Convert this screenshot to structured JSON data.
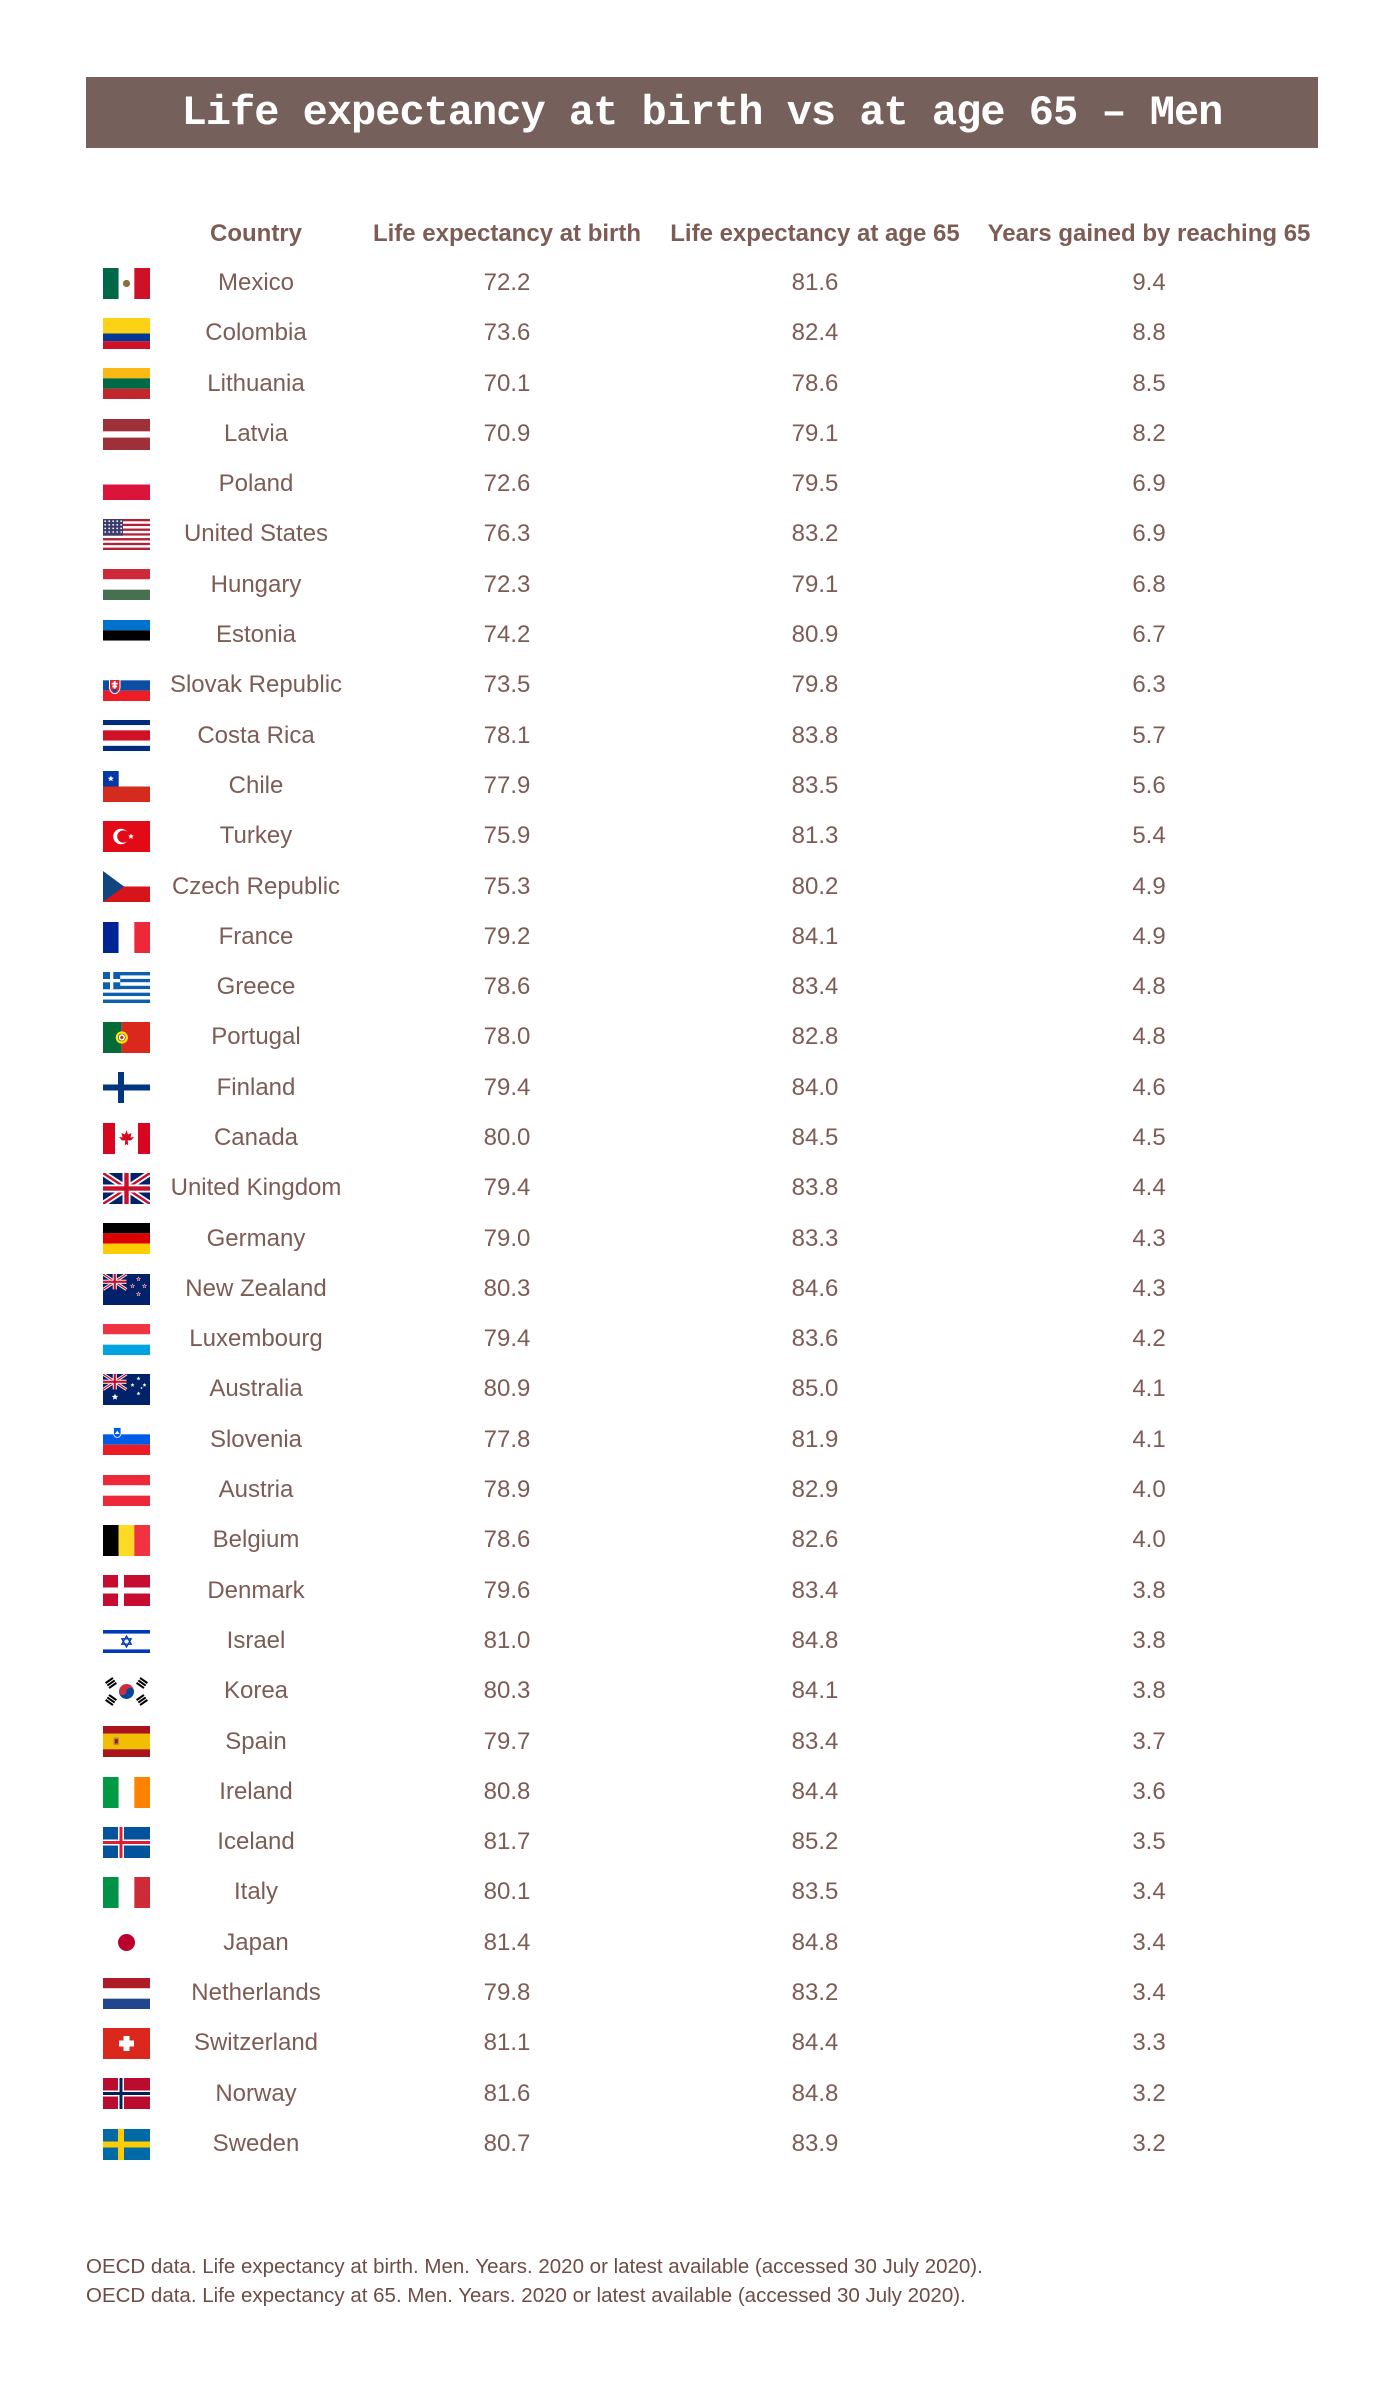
{
  "title": "Life expectancy at birth vs at age 65 – Men",
  "colors": {
    "title_bar_bg": "#75605B",
    "title_text": "#FFFFFF",
    "table_text": "#7D5C55",
    "footer_text": "#6E4C45",
    "page_bg": "#FFFFFF"
  },
  "table": {
    "headers": [
      "Country",
      "Life expectancy at birth",
      "Life expectancy at age 65",
      "Years gained by reaching 65"
    ],
    "rows": [
      {
        "country": "Mexico",
        "birth": "72.2",
        "age65": "81.6",
        "gained": "9.4",
        "flag": {
          "t": "mx"
        }
      },
      {
        "country": "Colombia",
        "birth": "73.6",
        "age65": "82.4",
        "gained": "8.8",
        "flag": {
          "t": "h",
          "c": [
            "#FCD116",
            "#003893",
            "#CE1126"
          ],
          "w": [
            2,
            1,
            1
          ]
        }
      },
      {
        "country": "Lithuania",
        "birth": "70.1",
        "age65": "78.6",
        "gained": "8.5",
        "flag": {
          "t": "h",
          "c": [
            "#FDB913",
            "#006A44",
            "#C1272D"
          ]
        }
      },
      {
        "country": "Latvia",
        "birth": "70.9",
        "age65": "79.1",
        "gained": "8.2",
        "flag": {
          "t": "h",
          "c": [
            "#9E3039",
            "#FFFFFF",
            "#9E3039"
          ],
          "w": [
            2,
            1,
            2
          ]
        }
      },
      {
        "country": "Poland",
        "birth": "72.6",
        "age65": "79.5",
        "gained": "6.9",
        "flag": {
          "t": "h",
          "c": [
            "#FFFFFF",
            "#DC143C"
          ]
        }
      },
      {
        "country": "United States",
        "birth": "76.3",
        "age65": "83.2",
        "gained": "6.9",
        "flag": {
          "t": "us"
        }
      },
      {
        "country": "Hungary",
        "birth": "72.3",
        "age65": "79.1",
        "gained": "6.8",
        "flag": {
          "t": "h",
          "c": [
            "#CE2939",
            "#FFFFFF",
            "#477050"
          ]
        }
      },
      {
        "country": "Estonia",
        "birth": "74.2",
        "age65": "80.9",
        "gained": "6.7",
        "flag": {
          "t": "h",
          "c": [
            "#0072CE",
            "#000000",
            "#FFFFFF"
          ]
        }
      },
      {
        "country": "Slovak Republic",
        "birth": "73.5",
        "age65": "79.8",
        "gained": "6.3",
        "flag": {
          "t": "sk"
        }
      },
      {
        "country": "Costa Rica",
        "birth": "78.1",
        "age65": "83.8",
        "gained": "5.7",
        "flag": {
          "t": "h",
          "c": [
            "#002B7F",
            "#FFFFFF",
            "#CE1126",
            "#FFFFFF",
            "#002B7F"
          ],
          "w": [
            1,
            1,
            2,
            1,
            1
          ]
        }
      },
      {
        "country": "Chile",
        "birth": "77.9",
        "age65": "83.5",
        "gained": "5.6",
        "flag": {
          "t": "cl"
        }
      },
      {
        "country": "Turkey",
        "birth": "75.9",
        "age65": "81.3",
        "gained": "5.4",
        "flag": {
          "t": "tr"
        }
      },
      {
        "country": "Czech Republic",
        "birth": "75.3",
        "age65": "80.2",
        "gained": "4.9",
        "flag": {
          "t": "cz"
        }
      },
      {
        "country": "France",
        "birth": "79.2",
        "age65": "84.1",
        "gained": "4.9",
        "flag": {
          "t": "v",
          "c": [
            "#002395",
            "#FFFFFF",
            "#ED2939"
          ]
        }
      },
      {
        "country": "Greece",
        "birth": "78.6",
        "age65": "83.4",
        "gained": "4.8",
        "flag": {
          "t": "gr"
        }
      },
      {
        "country": "Portugal",
        "birth": "78.0",
        "age65": "82.8",
        "gained": "4.8",
        "flag": {
          "t": "pt"
        }
      },
      {
        "country": "Finland",
        "birth": "79.4",
        "age65": "84.0",
        "gained": "4.6",
        "flag": {
          "t": "nordic",
          "bg": "#FFFFFF",
          "cross": "#003580"
        }
      },
      {
        "country": "Canada",
        "birth": "80.0",
        "age65": "84.5",
        "gained": "4.5",
        "flag": {
          "t": "ca"
        }
      },
      {
        "country": "United Kingdom",
        "birth": "79.4",
        "age65": "83.8",
        "gained": "4.4",
        "flag": {
          "t": "uk"
        }
      },
      {
        "country": "Germany",
        "birth": "79.0",
        "age65": "83.3",
        "gained": "4.3",
        "flag": {
          "t": "h",
          "c": [
            "#000000",
            "#DD0000",
            "#FFCE00"
          ]
        }
      },
      {
        "country": "New Zealand",
        "birth": "80.3",
        "age65": "84.6",
        "gained": "4.3",
        "flag": {
          "t": "aunz",
          "variant": "nz"
        }
      },
      {
        "country": "Luxembourg",
        "birth": "79.4",
        "age65": "83.6",
        "gained": "4.2",
        "flag": {
          "t": "h",
          "c": [
            "#EF3340",
            "#FFFFFF",
            "#00A3E0"
          ]
        }
      },
      {
        "country": "Australia",
        "birth": "80.9",
        "age65": "85.0",
        "gained": "4.1",
        "flag": {
          "t": "aunz",
          "variant": "au"
        }
      },
      {
        "country": "Slovenia",
        "birth": "77.8",
        "age65": "81.9",
        "gained": "4.1",
        "flag": {
          "t": "si"
        }
      },
      {
        "country": "Austria",
        "birth": "78.9",
        "age65": "82.9",
        "gained": "4.0",
        "flag": {
          "t": "h",
          "c": [
            "#ED2939",
            "#FFFFFF",
            "#ED2939"
          ]
        }
      },
      {
        "country": "Belgium",
        "birth": "78.6",
        "age65": "82.6",
        "gained": "4.0",
        "flag": {
          "t": "v",
          "c": [
            "#000000",
            "#FDDA24",
            "#EF3340"
          ]
        }
      },
      {
        "country": "Denmark",
        "birth": "79.6",
        "age65": "83.4",
        "gained": "3.8",
        "flag": {
          "t": "nordic",
          "bg": "#C60C30",
          "cross": "#FFFFFF"
        }
      },
      {
        "country": "Israel",
        "birth": "81.0",
        "age65": "84.8",
        "gained": "3.8",
        "flag": {
          "t": "il"
        }
      },
      {
        "country": "Korea",
        "birth": "80.3",
        "age65": "84.1",
        "gained": "3.8",
        "flag": {
          "t": "kr"
        }
      },
      {
        "country": "Spain",
        "birth": "79.7",
        "age65": "83.4",
        "gained": "3.7",
        "flag": {
          "t": "es"
        }
      },
      {
        "country": "Ireland",
        "birth": "80.8",
        "age65": "84.4",
        "gained": "3.6",
        "flag": {
          "t": "v",
          "c": [
            "#009A44",
            "#FFFFFF",
            "#FF8200"
          ]
        }
      },
      {
        "country": "Iceland",
        "birth": "81.7",
        "age65": "85.2",
        "gained": "3.5",
        "flag": {
          "t": "nordic",
          "bg": "#02529C",
          "cross": "#FFFFFF",
          "inner": "#DC1E35"
        }
      },
      {
        "country": "Italy",
        "birth": "80.1",
        "age65": "83.5",
        "gained": "3.4",
        "flag": {
          "t": "v",
          "c": [
            "#009246",
            "#FFFFFF",
            "#CE2B37"
          ]
        }
      },
      {
        "country": "Japan",
        "birth": "81.4",
        "age65": "84.8",
        "gained": "3.4",
        "flag": {
          "t": "circle",
          "bg": "#FFFFFF",
          "fg": "#BC002D"
        }
      },
      {
        "country": "Netherlands",
        "birth": "79.8",
        "age65": "83.2",
        "gained": "3.4",
        "flag": {
          "t": "h",
          "c": [
            "#AE1C28",
            "#FFFFFF",
            "#21468B"
          ]
        }
      },
      {
        "country": "Switzerland",
        "birth": "81.1",
        "age65": "84.4",
        "gained": "3.3",
        "flag": {
          "t": "swiss"
        }
      },
      {
        "country": "Norway",
        "birth": "81.6",
        "age65": "84.8",
        "gained": "3.2",
        "flag": {
          "t": "nordic",
          "bg": "#BA0C2F",
          "cross": "#FFFFFF",
          "inner": "#00205B"
        }
      },
      {
        "country": "Sweden",
        "birth": "80.7",
        "age65": "83.9",
        "gained": "3.2",
        "flag": {
          "t": "nordic",
          "bg": "#006AA7",
          "cross": "#FECC02"
        }
      }
    ]
  },
  "footer": {
    "line1": "OECD data. Life expectancy at birth. Men. Years. 2020 or latest available (accessed 30 July 2020).",
    "line2": "OECD data. Life expectancy at 65. Men. Years. 2020 or latest available (accessed 30 July 2020)."
  },
  "chart_data": {
    "type": "table",
    "title": "Life expectancy at birth vs at age 65 – Men",
    "columns": [
      "Country",
      "Life expectancy at birth",
      "Life expectancy at age 65",
      "Years gained by reaching 65"
    ],
    "rows": [
      [
        "Mexico",
        72.2,
        81.6,
        9.4
      ],
      [
        "Colombia",
        73.6,
        82.4,
        8.8
      ],
      [
        "Lithuania",
        70.1,
        78.6,
        8.5
      ],
      [
        "Latvia",
        70.9,
        79.1,
        8.2
      ],
      [
        "Poland",
        72.6,
        79.5,
        6.9
      ],
      [
        "United States",
        76.3,
        83.2,
        6.9
      ],
      [
        "Hungary",
        72.3,
        79.1,
        6.8
      ],
      [
        "Estonia",
        74.2,
        80.9,
        6.7
      ],
      [
        "Slovak Republic",
        73.5,
        79.8,
        6.3
      ],
      [
        "Costa Rica",
        78.1,
        83.8,
        5.7
      ],
      [
        "Chile",
        77.9,
        83.5,
        5.6
      ],
      [
        "Turkey",
        75.9,
        81.3,
        5.4
      ],
      [
        "Czech Republic",
        75.3,
        80.2,
        4.9
      ],
      [
        "France",
        79.2,
        84.1,
        4.9
      ],
      [
        "Greece",
        78.6,
        83.4,
        4.8
      ],
      [
        "Portugal",
        78.0,
        82.8,
        4.8
      ],
      [
        "Finland",
        79.4,
        84.0,
        4.6
      ],
      [
        "Canada",
        80.0,
        84.5,
        4.5
      ],
      [
        "United Kingdom",
        79.4,
        83.8,
        4.4
      ],
      [
        "Germany",
        79.0,
        83.3,
        4.3
      ],
      [
        "New Zealand",
        80.3,
        84.6,
        4.3
      ],
      [
        "Luxembourg",
        79.4,
        83.6,
        4.2
      ],
      [
        "Australia",
        80.9,
        85.0,
        4.1
      ],
      [
        "Slovenia",
        77.8,
        81.9,
        4.1
      ],
      [
        "Austria",
        78.9,
        82.9,
        4.0
      ],
      [
        "Belgium",
        78.6,
        82.6,
        4.0
      ],
      [
        "Denmark",
        79.6,
        83.4,
        3.8
      ],
      [
        "Israel",
        81.0,
        84.8,
        3.8
      ],
      [
        "Korea",
        80.3,
        84.1,
        3.8
      ],
      [
        "Spain",
        79.7,
        83.4,
        3.7
      ],
      [
        "Ireland",
        80.8,
        84.4,
        3.6
      ],
      [
        "Iceland",
        81.7,
        85.2,
        3.5
      ],
      [
        "Italy",
        80.1,
        83.5,
        3.4
      ],
      [
        "Japan",
        81.4,
        84.8,
        3.4
      ],
      [
        "Netherlands",
        79.8,
        83.2,
        3.4
      ],
      [
        "Switzerland",
        81.1,
        84.4,
        3.3
      ],
      [
        "Norway",
        81.6,
        84.8,
        3.2
      ],
      [
        "Sweden",
        80.7,
        83.9,
        3.2
      ]
    ]
  }
}
